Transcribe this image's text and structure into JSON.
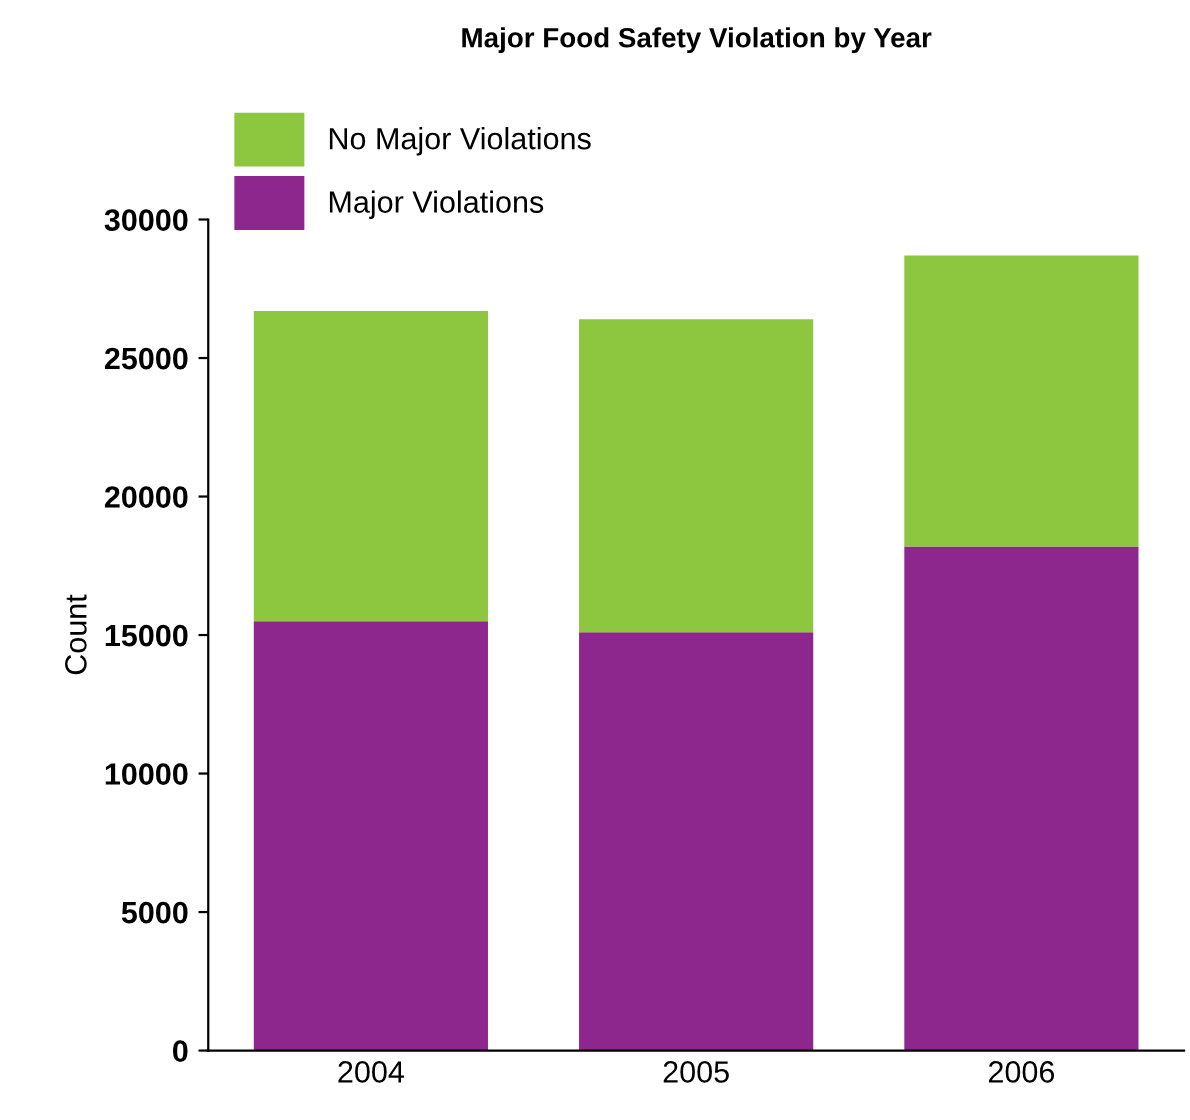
{
  "chart_data": {
    "type": "bar",
    "title": "Major Food Safety Violation by Year",
    "ylabel": "Count",
    "categories": [
      "2004",
      "2005",
      "2006"
    ],
    "stacked": true,
    "series": [
      {
        "name": "Major Violations",
        "color": "#8e278d",
        "values": [
          15500,
          15100,
          18200
        ]
      },
      {
        "name": "No Major Violations",
        "color": "#8dc63f",
        "values": [
          11200,
          11300,
          10500
        ]
      }
    ],
    "ylim": [
      0,
      30000
    ],
    "yticks": [
      0,
      5000,
      10000,
      15000,
      20000,
      25000,
      30000
    ],
    "grid": false,
    "legend": "top left"
  }
}
